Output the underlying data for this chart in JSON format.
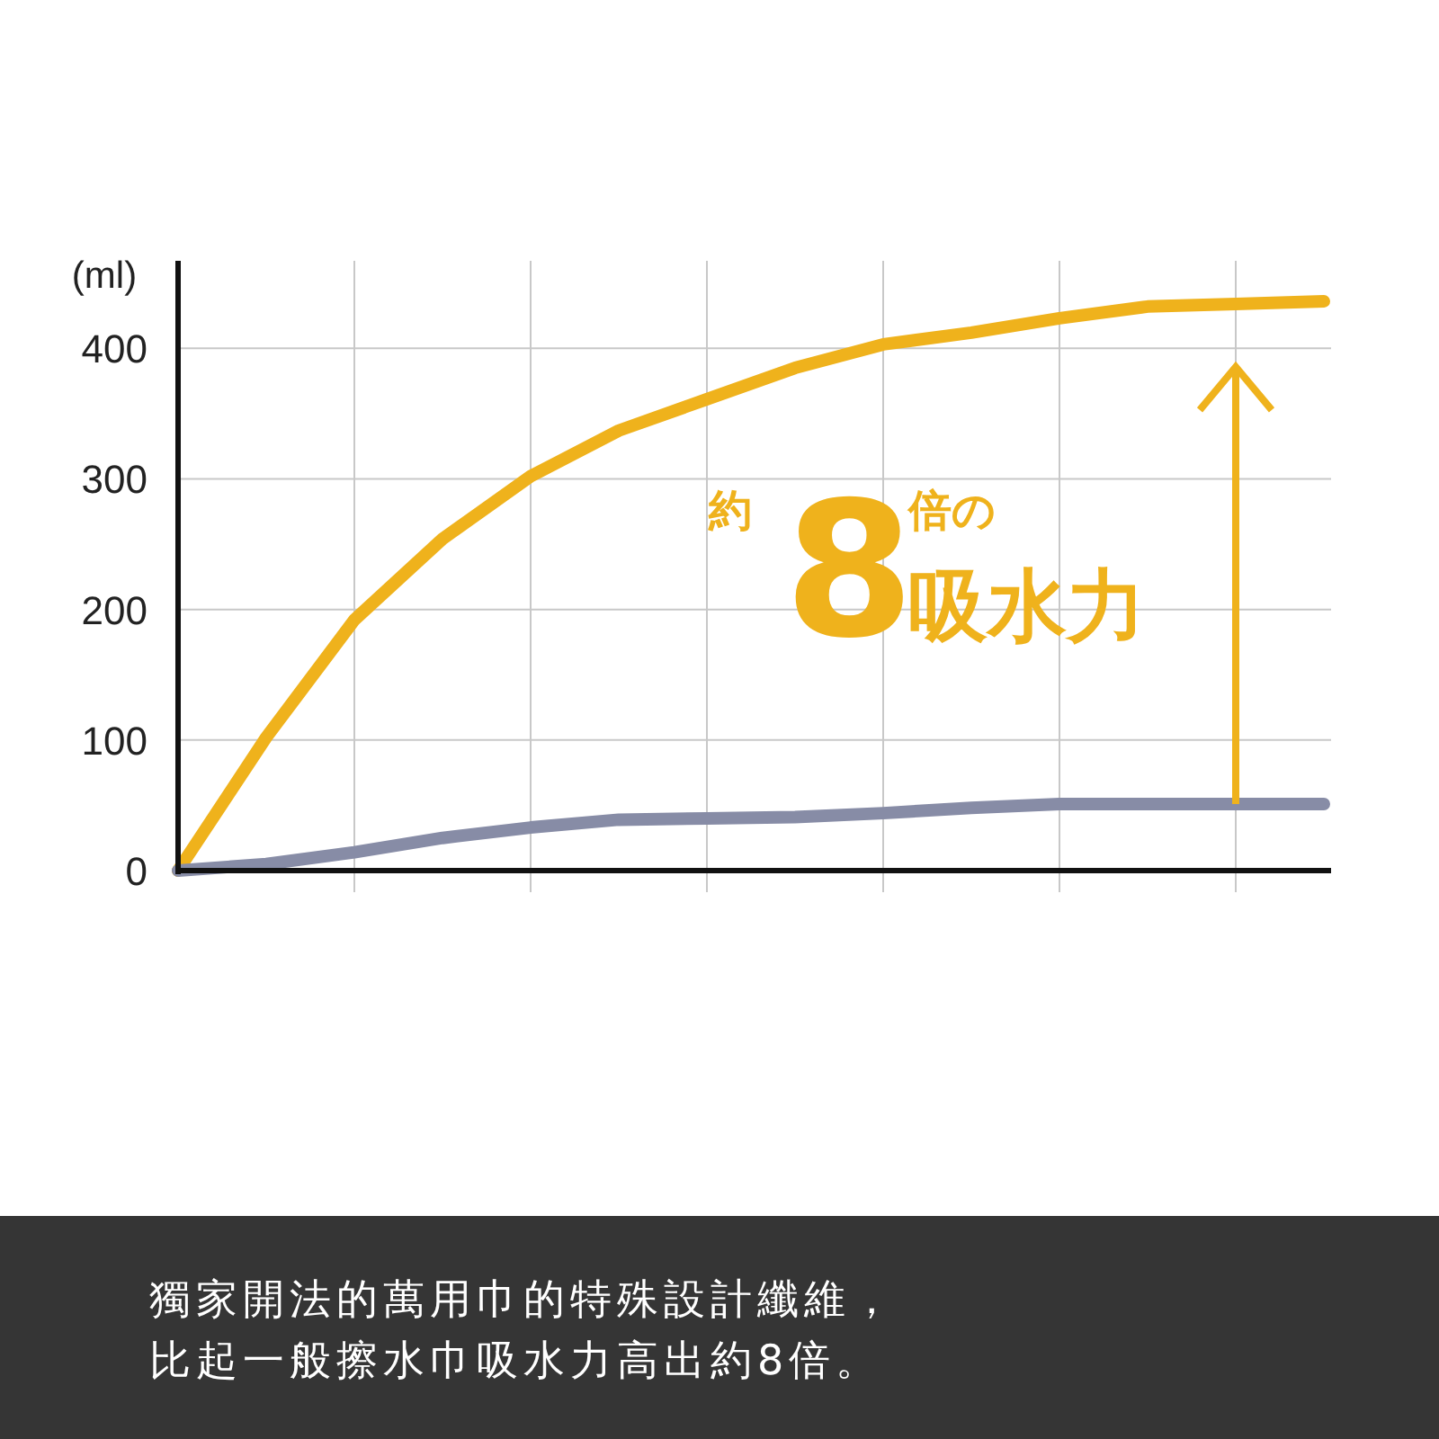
{
  "chart_data": {
    "type": "line",
    "ylabel": "(ml)",
    "categories": [
      null,
      null,
      null,
      null,
      null,
      null,
      null,
      null,
      null,
      null,
      null,
      null,
      null,
      null
    ],
    "series": [
      {
        "color": "#efb21c",
        "values": [
          0,
          102,
          192,
          254,
          302,
          337,
          361,
          385,
          403,
          412,
          423,
          432,
          434,
          436
        ]
      },
      {
        "color": "#878ca6",
        "values": [
          0,
          5,
          14,
          25,
          33,
          39,
          40,
          41,
          44,
          48,
          51,
          51,
          51,
          51
        ]
      }
    ],
    "ylim": [
      0,
      467
    ],
    "yticks": [
      0,
      100,
      200,
      300,
      400
    ],
    "grid": true,
    "line_style": "solid",
    "annotations": [
      "約8倍の吸水力",
      "獨家開法的萬用巾的特殊設計纖維，",
      "比起一般擦水巾吸水力高出約8倍。"
    ]
  }
}
